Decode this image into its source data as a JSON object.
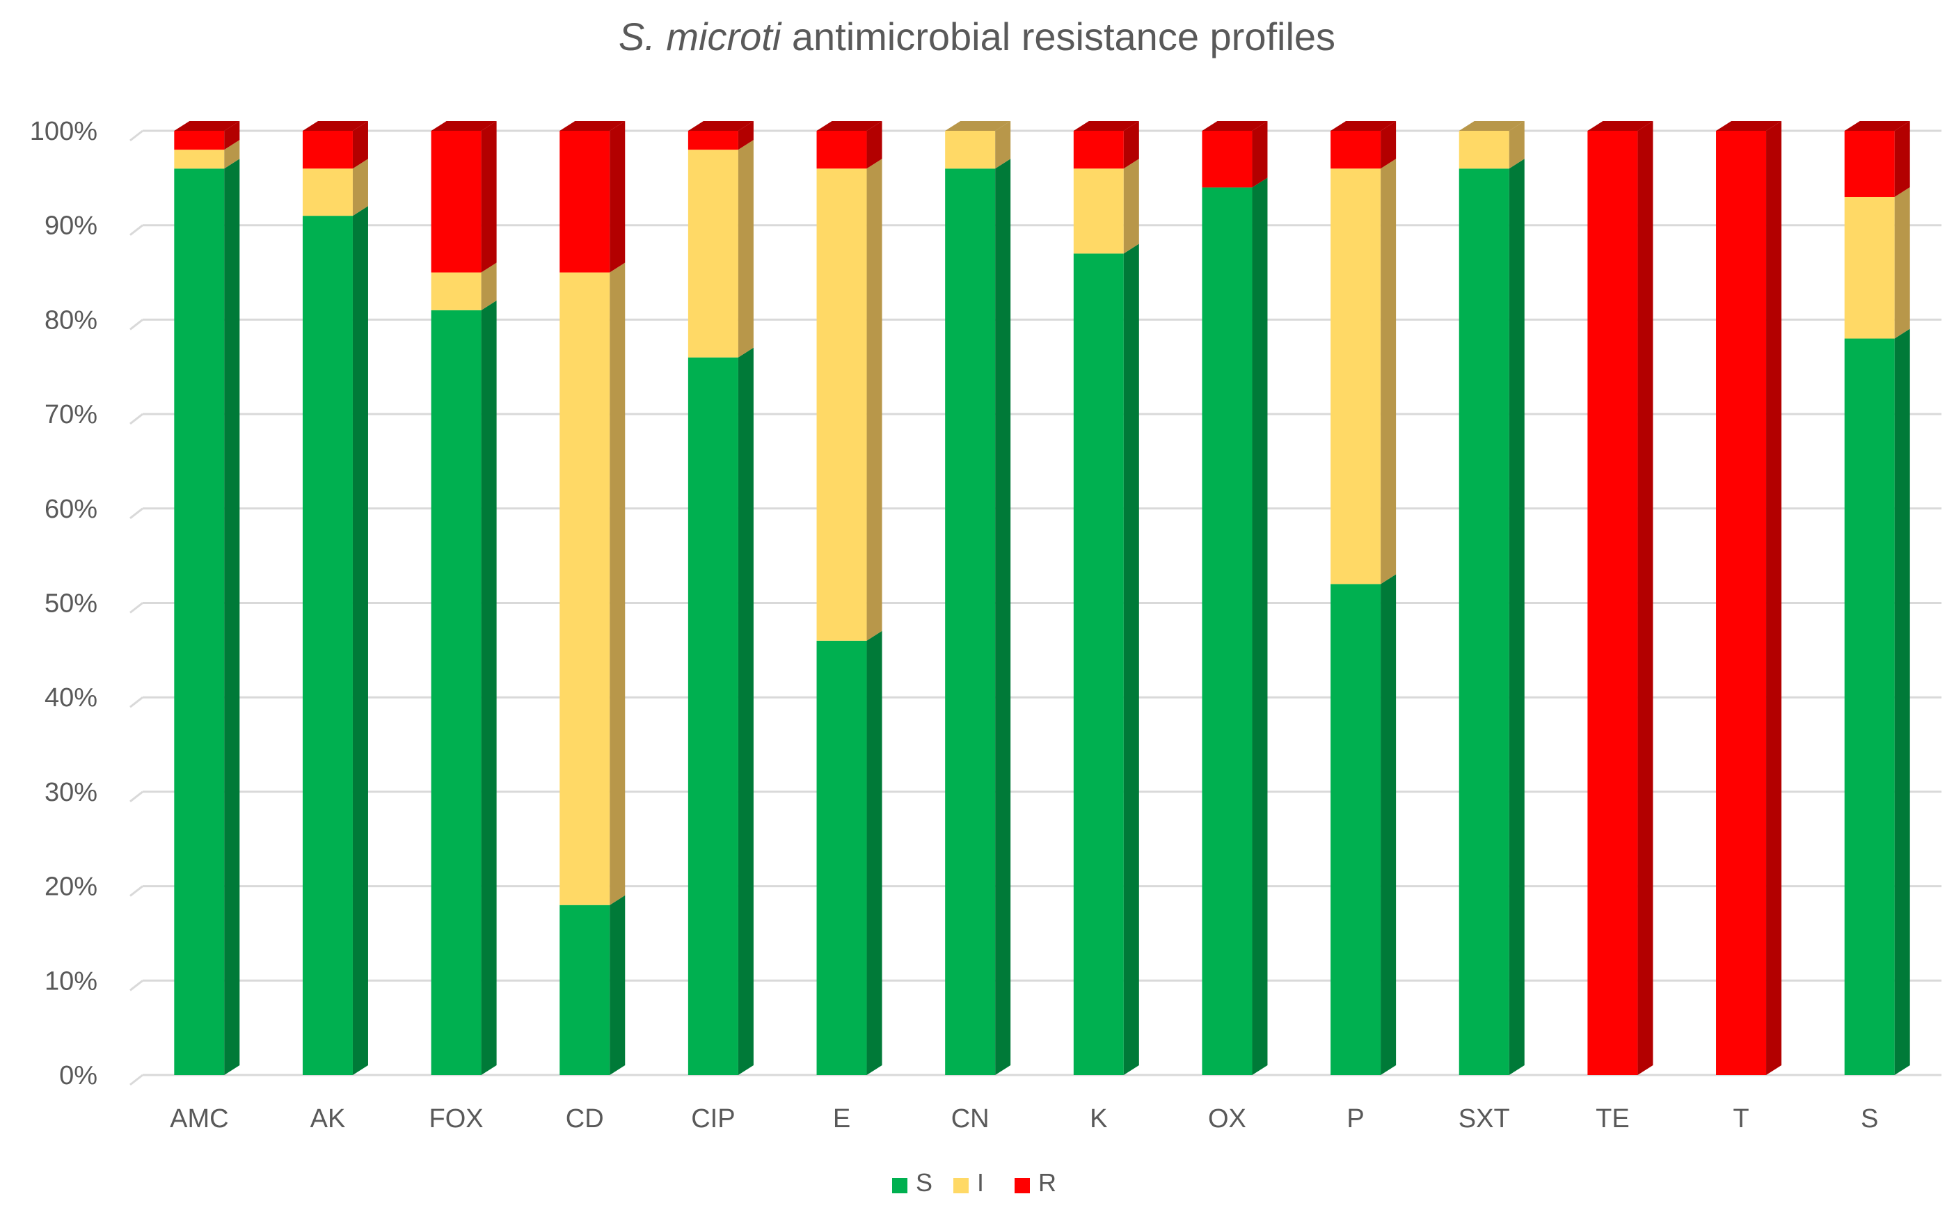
{
  "chart_data": {
    "type": "bar",
    "subtype": "stacked-100-percent-3d",
    "title_italic": "S. microti",
    "title_rest": " antimicrobial resistance profiles",
    "xlabel": "",
    "ylabel": "",
    "ylim": [
      0,
      100
    ],
    "y_ticks": [
      "0%",
      "10%",
      "20%",
      "30%",
      "40%",
      "50%",
      "60%",
      "70%",
      "80%",
      "90%",
      "100%"
    ],
    "grid": true,
    "legend_position": "bottom",
    "categories": [
      "AMC",
      "AK",
      "FOX",
      "CD",
      "CIP",
      "E",
      "CN",
      "K",
      "OX",
      "P",
      "SXT",
      "TE",
      "T",
      "S"
    ],
    "series": [
      {
        "name": "S",
        "color": "#00B050",
        "side_color": "#007A38",
        "values": [
          96,
          91,
          81,
          18,
          76,
          46,
          96,
          87,
          94,
          52,
          96,
          0,
          0,
          78
        ]
      },
      {
        "name": "I",
        "color": "#FFD966",
        "side_color": "#B8974A",
        "values": [
          2,
          5,
          4,
          67,
          22,
          50,
          4,
          9,
          0,
          44,
          4,
          0,
          0,
          15
        ]
      },
      {
        "name": "R",
        "color": "#FF0000",
        "side_color": "#B30000",
        "values": [
          2,
          4,
          15,
          15,
          2,
          4,
          0,
          4,
          6,
          4,
          0,
          100,
          100,
          7
        ]
      }
    ]
  }
}
